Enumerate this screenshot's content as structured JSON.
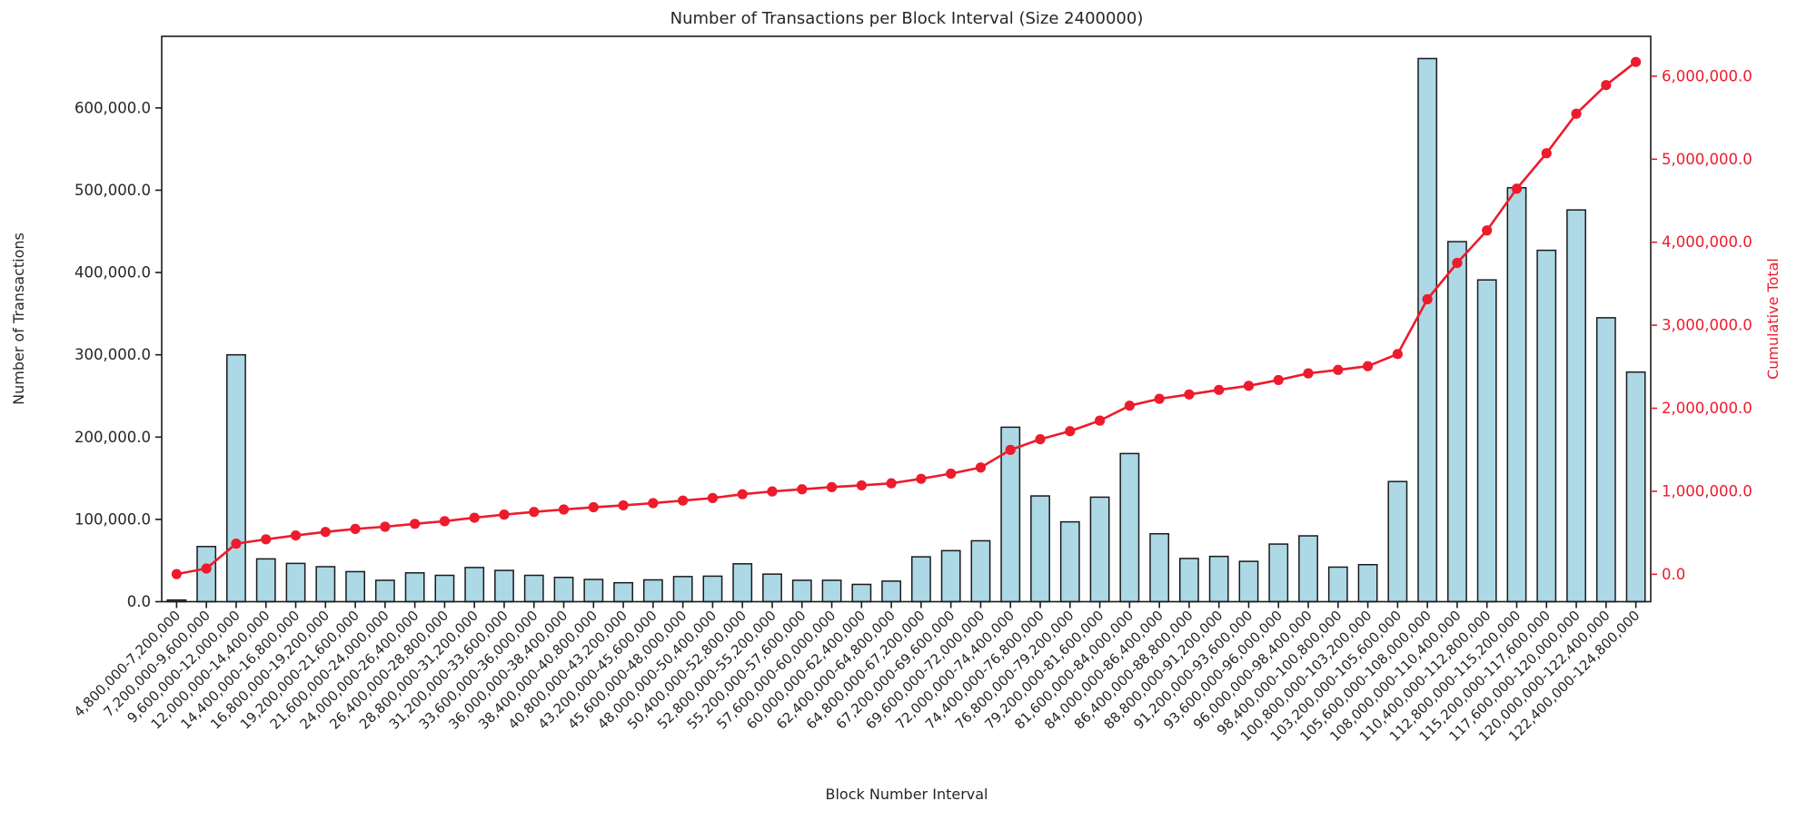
{
  "chart_data": {
    "type": "bar+line",
    "title": "Number of Transactions per Block Interval (Size 2400000)",
    "xlabel": "Block Number Interval",
    "ylabel_left": "Number of Transactions",
    "ylabel_right": "Cumulative Total",
    "colors": {
      "bar_fill": "#add8e6",
      "bar_edge": "#1a1a1a",
      "line": "#ed1b2c",
      "right_axis_text": "#ed1b2c",
      "left_axis_text": "#262626",
      "spine": "#1a1a1a"
    },
    "legend": "none",
    "grid": false,
    "categories": [
      "4,800,000-7,200,000",
      "7,200,000-9,600,000",
      "9,600,000-12,000,000",
      "12,000,000-14,400,000",
      "14,400,000-16,800,000",
      "16,800,000-19,200,000",
      "19,200,000-21,600,000",
      "21,600,000-24,000,000",
      "24,000,000-26,400,000",
      "26,400,000-28,800,000",
      "28,800,000-31,200,000",
      "31,200,000-33,600,000",
      "33,600,000-36,000,000",
      "36,000,000-38,400,000",
      "38,400,000-40,800,000",
      "40,800,000-43,200,000",
      "43,200,000-45,600,000",
      "45,600,000-48,000,000",
      "48,000,000-50,400,000",
      "50,400,000-52,800,000",
      "52,800,000-55,200,000",
      "55,200,000-57,600,000",
      "57,600,000-60,000,000",
      "60,000,000-62,400,000",
      "62,400,000-64,800,000",
      "64,800,000-67,200,000",
      "67,200,000-69,600,000",
      "69,600,000-72,000,000",
      "72,000,000-74,400,000",
      "74,400,000-76,800,000",
      "76,800,000-79,200,000",
      "79,200,000-81,600,000",
      "81,600,000-84,000,000",
      "84,000,000-86,400,000",
      "86,400,000-88,800,000",
      "88,800,000-91,200,000",
      "91,200,000-93,600,000",
      "93,600,000-96,000,000",
      "96,000,000-98,400,000",
      "98,400,000-100,800,000",
      "100,800,000-103,200,000",
      "103,200,000-105,600,000",
      "105,600,000-108,000,000",
      "108,000,000-110,400,000",
      "110,400,000-112,800,000",
      "112,800,000-115,200,000",
      "115,200,000-117,600,000",
      "117,600,000-120,000,000",
      "120,000,000-122,400,000",
      "122,400,000-124,800,000"
    ],
    "bar_series": {
      "name": "Number of Transactions",
      "values": [
        2000,
        67000,
        300000,
        52000,
        46500,
        42500,
        36500,
        26000,
        35000,
        32000,
        41500,
        38000,
        32000,
        29500,
        27000,
        23000,
        26500,
        30500,
        31000,
        46000,
        33500,
        26000,
        26000,
        21000,
        25000,
        54500,
        62000,
        74000,
        212000,
        128500,
        97000,
        127000,
        180000,
        82500,
        52500,
        55000,
        49000,
        70000,
        80000,
        42000,
        45000,
        146000,
        660000,
        437500,
        391000,
        503000,
        427000,
        476000,
        345000,
        279000
      ]
    },
    "line_series": {
      "name": "Cumulative Total",
      "values": [
        2000,
        69000,
        369000,
        421000,
        467500,
        510000,
        546500,
        572500,
        607500,
        639500,
        681000,
        719000,
        751000,
        780500,
        807500,
        830500,
        857000,
        887500,
        918500,
        964500,
        998000,
        1024000,
        1050000,
        1071000,
        1096000,
        1150500,
        1212500,
        1286500,
        1498500,
        1627000,
        1724000,
        1851000,
        2031000,
        2113500,
        2166000,
        2221000,
        2270000,
        2340000,
        2420000,
        2462000,
        2507000,
        2653000,
        3313000,
        3750500,
        4141500,
        4644500,
        5071500,
        5547500,
        5892500,
        6171500
      ]
    },
    "left_axis": {
      "tick_labels": [
        "0.0",
        "100,000.0",
        "200,000.0",
        "300,000.0",
        "400,000.0",
        "500,000.0",
        "600,000.0"
      ],
      "tick_values": [
        0,
        100000,
        200000,
        300000,
        400000,
        500000,
        600000
      ],
      "range": [
        0,
        687000
      ]
    },
    "right_axis": {
      "tick_labels": [
        "0.0",
        "1,000,000.0",
        "2,000,000.0",
        "3,000,000.0",
        "4,000,000.0",
        "5,000,000.0",
        "6,000,000.0"
      ],
      "tick_values": [
        0,
        1000000,
        2000000,
        3000000,
        4000000,
        5000000,
        6000000
      ],
      "range": [
        -330000,
        6480000
      ]
    }
  }
}
